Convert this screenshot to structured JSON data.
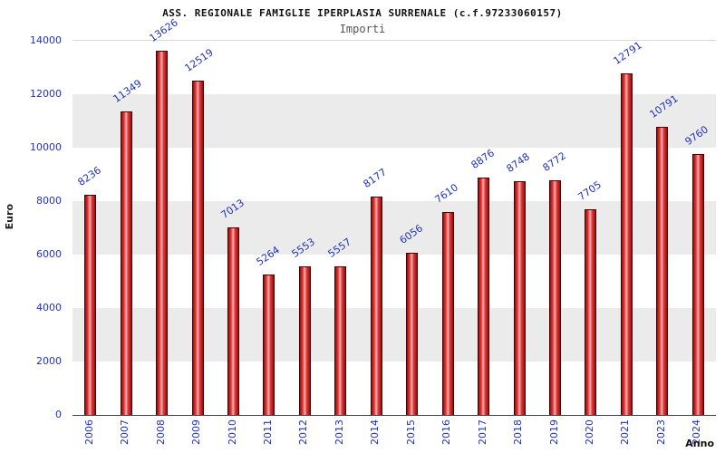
{
  "title": "ASS. REGIONALE FAMIGLIE IPERPLASIA SURRENALE (c.f.97233060157)",
  "subtitle": "Importi",
  "chart_data": {
    "type": "bar",
    "title": "ASS. REGIONALE FAMIGLIE IPERPLASIA SURRENALE (c.f.97233060157)",
    "subtitle": "Importi",
    "categories": [
      "2006",
      "2007",
      "2008",
      "2009",
      "2010",
      "2011",
      "2012",
      "2013",
      "2014",
      "2015",
      "2016",
      "2017",
      "2018",
      "2019",
      "2020",
      "2021",
      "2023",
      "2024"
    ],
    "values": [
      8236,
      11349,
      13626,
      12519,
      7013,
      5264,
      5553,
      5557,
      8177,
      6056,
      7610,
      8876,
      8748,
      8772,
      7705,
      12791,
      10791,
      9760
    ],
    "xlabel": "Anno",
    "ylabel": "Euro",
    "ylim": [
      0,
      14000
    ],
    "ytick_step": 2000,
    "grid": true,
    "legend_position": "none",
    "bar_color": "#e43b3b",
    "bar_edge_color": "#4a0000",
    "value_label_color": "#2233bb",
    "tick_label_color": "#2233bb",
    "band_colors": [
      "#ffffff",
      "#ebebeb"
    ]
  }
}
